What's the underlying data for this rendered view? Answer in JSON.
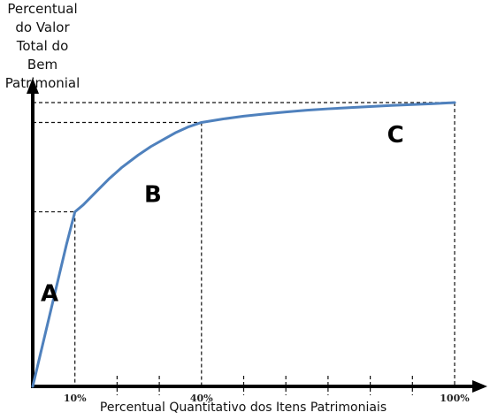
{
  "chart_data": {
    "type": "line",
    "title": "",
    "ylabel_lines": [
      "Percentual",
      "do Valor",
      "Total do",
      "Bem",
      "Patrimonial"
    ],
    "xlabel": "Percentual Quantitativo dos Itens Patrimoniais",
    "xlim": [
      0,
      100
    ],
    "ylim": [
      0,
      100
    ],
    "x_ticks_labeled": [
      {
        "value": 10,
        "label": "10%"
      },
      {
        "value": 40,
        "label": "40%"
      },
      {
        "value": 100,
        "label": "100%"
      }
    ],
    "x_minor_ticks": [
      20,
      30,
      50,
      60,
      70,
      80,
      90
    ],
    "series": [
      {
        "color": "#4f81bd",
        "x": [
          0,
          2,
          4,
          6,
          8,
          10,
          12,
          15,
          18,
          21,
          25,
          28,
          31,
          34,
          37,
          40,
          45,
          50,
          55,
          60,
          65,
          70,
          75,
          80,
          85,
          90,
          95,
          100
        ],
        "y": [
          0,
          12.5,
          25,
          37.5,
          50,
          61.5,
          64,
          68.5,
          73,
          77,
          81.5,
          84.5,
          87,
          89.5,
          91.5,
          93,
          94.2,
          95.2,
          96,
          96.7,
          97.3,
          97.8,
          98.2,
          98.6,
          99,
          99.3,
          99.6,
          100
        ]
      }
    ],
    "reference_lines": [
      {
        "x": 10,
        "y": 61.5
      },
      {
        "x": 40,
        "y": 93
      },
      {
        "x": 100,
        "y": 100
      }
    ],
    "region_labels": [
      {
        "label": "A",
        "x": 4,
        "y": 30
      },
      {
        "label": "B",
        "x": 28.5,
        "y": 65
      },
      {
        "label": "C",
        "x": 86,
        "y": 86
      }
    ],
    "grid": false,
    "legend": "none"
  }
}
